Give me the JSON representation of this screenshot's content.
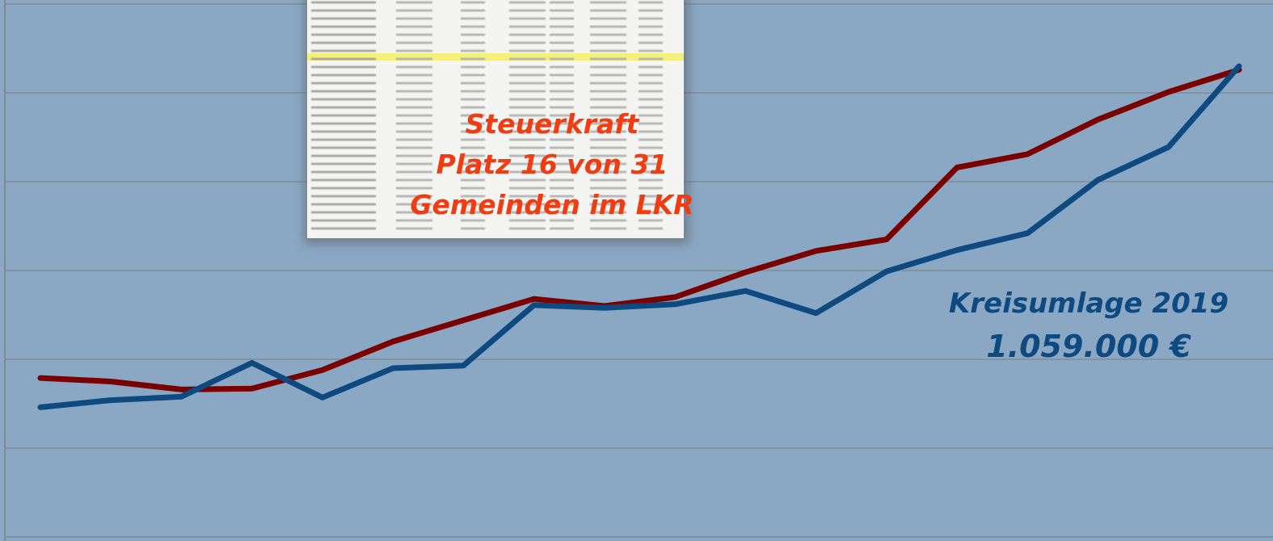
{
  "chart_data": {
    "type": "line",
    "categories": [
      null,
      null,
      null,
      null,
      null,
      null,
      null,
      null,
      null,
      null,
      null,
      null,
      null,
      null,
      null,
      null,
      null,
      null
    ],
    "series": [
      {
        "color": "#7a0000",
        "values": [
          1.79,
          1.75,
          1.66,
          1.67,
          1.88,
          2.2,
          2.44,
          2.68,
          2.6,
          2.7,
          2.98,
          3.22,
          3.35,
          4.16,
          4.31,
          4.7,
          5.01,
          5.26
        ]
      },
      {
        "color": "#0e4a80",
        "values": [
          1.46,
          1.54,
          1.58,
          1.96,
          1.57,
          1.9,
          1.93,
          2.61,
          2.58,
          2.62,
          2.77,
          2.52,
          2.99,
          3.23,
          3.42,
          4.02,
          4.39,
          5.3
        ]
      }
    ],
    "ylim": [
      0,
      6
    ],
    "yticks": [
      0,
      1,
      2,
      3,
      4,
      5,
      6
    ],
    "grid": true,
    "annotations": [
      "Steuerkraft",
      "Platz 16 von 31",
      "Gemeinden im LKR",
      "Kreisumlage 2019",
      "1.059.000 €"
    ]
  }
}
